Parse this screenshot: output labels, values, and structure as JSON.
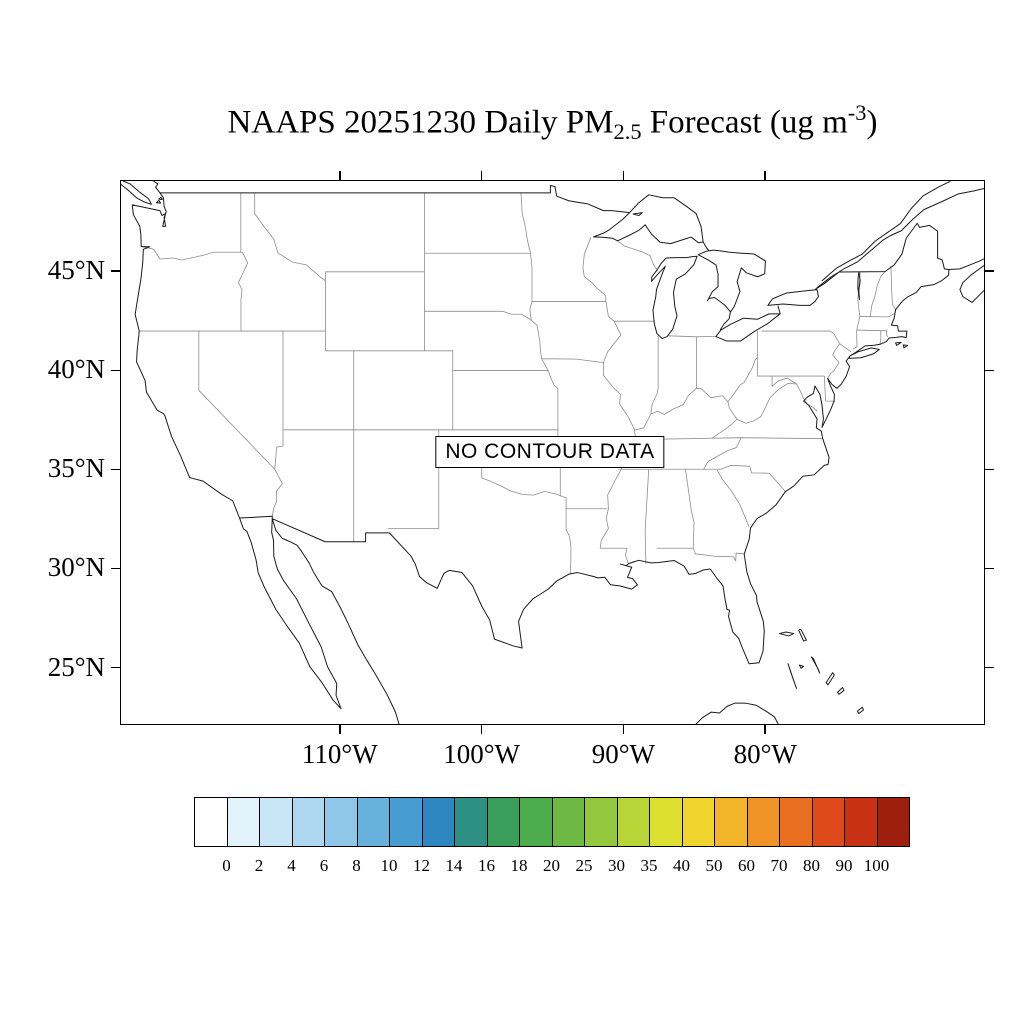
{
  "title": {
    "text_prefix": "NAAPS 20251230 Daily PM",
    "subscript": "2.5",
    "text_middle": " Forecast (ug m",
    "superscript": "-3",
    "text_suffix": ")"
  },
  "map": {
    "no_data_label": "NO CONTOUR DATA",
    "extent": {
      "lon_min": -125.5,
      "lon_max": -64.5,
      "lat_min": 22.1,
      "lat_max": 49.6
    },
    "lat_ticks": [
      {
        "value": 45,
        "label": "45°N"
      },
      {
        "value": 40,
        "label": "40°N"
      },
      {
        "value": 35,
        "label": "35°N"
      },
      {
        "value": 30,
        "label": "30°N"
      },
      {
        "value": 25,
        "label": "25°N"
      }
    ],
    "lon_ticks": [
      {
        "value": -110,
        "label": "110°W"
      },
      {
        "value": -100,
        "label": "100°W"
      },
      {
        "value": -90,
        "label": "90°W"
      },
      {
        "value": -80,
        "label": "80°W"
      }
    ]
  },
  "colorbar": {
    "tick_labels": [
      "0",
      "2",
      "4",
      "6",
      "8",
      "10",
      "12",
      "14",
      "16",
      "18",
      "20",
      "25",
      "30",
      "35",
      "40",
      "50",
      "60",
      "70",
      "80",
      "90",
      "100"
    ],
    "cell_colors": [
      "#FFFFFF",
      "#E3F3FB",
      "#C9E6F6",
      "#ADD8F0",
      "#8EC7E8",
      "#69B1DD",
      "#479CD1",
      "#2E86C1",
      "#2E8F85",
      "#389E59",
      "#4CAB4A",
      "#6EB944",
      "#93C73D",
      "#B9D437",
      "#DDDF31",
      "#EFD42D",
      "#F2B52A",
      "#EF9326",
      "#E96E20",
      "#DE4A1B",
      "#C93114",
      "#9E1F0E"
    ]
  }
}
